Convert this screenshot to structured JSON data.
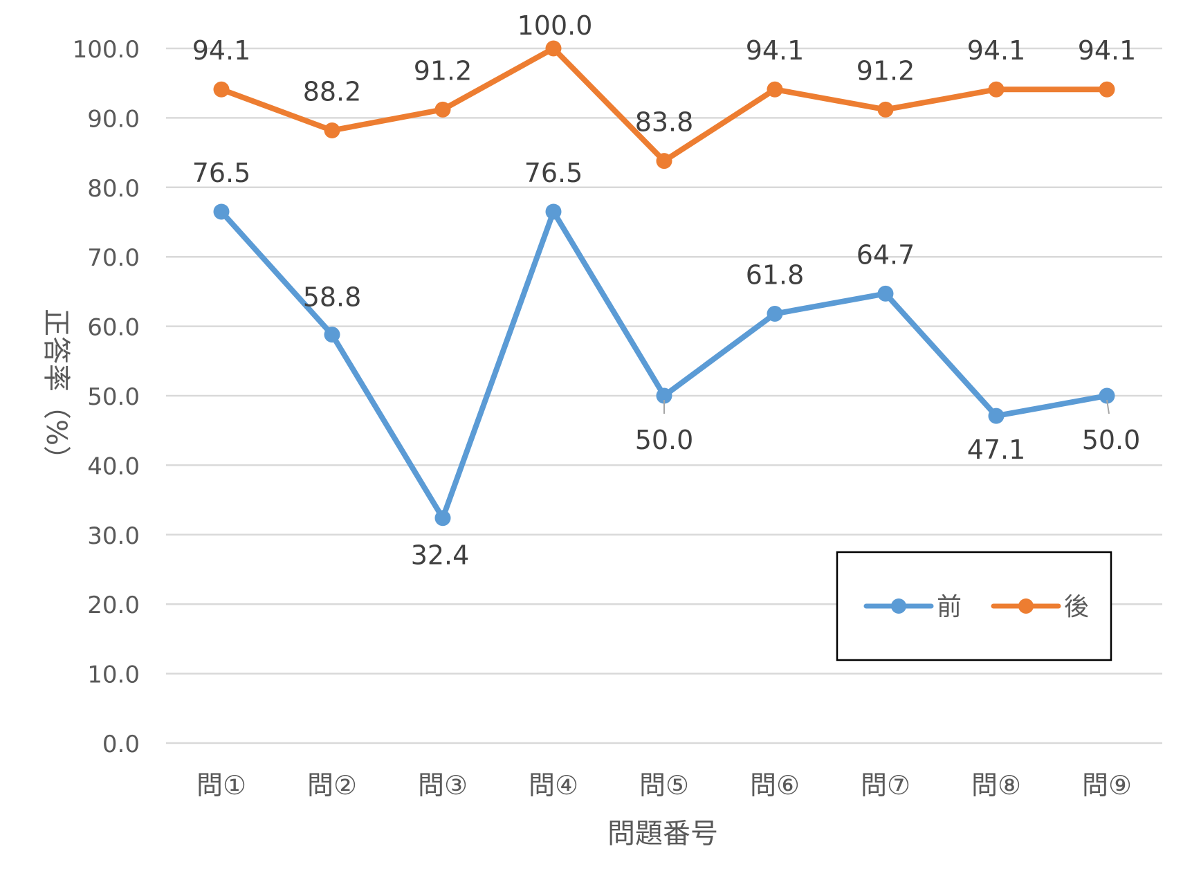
{
  "chart_data": {
    "type": "line",
    "title": "",
    "xlabel": "問題番号",
    "ylabel": "正答率（%）",
    "categories": [
      "問①",
      "問②",
      "問③",
      "問④",
      "問⑤",
      "問⑥",
      "問⑦",
      "問⑧",
      "問⑨"
    ],
    "ylim": [
      0,
      100
    ],
    "yticks": [
      "0.0",
      "10.0",
      "20.0",
      "30.0",
      "40.0",
      "50.0",
      "60.0",
      "70.0",
      "80.0",
      "90.0",
      "100.0"
    ],
    "grid": true,
    "legend_position": "bottom-right",
    "series": [
      {
        "name": "前",
        "color": "#5B9BD5",
        "values": [
          76.5,
          58.8,
          32.4,
          76.5,
          50.0,
          61.8,
          64.7,
          47.1,
          50.0
        ],
        "labels": [
          "76.5",
          "58.8",
          "32.4",
          "76.5",
          "50.0",
          "61.8",
          "64.7",
          "47.1",
          "50.0"
        ]
      },
      {
        "name": "後",
        "color": "#ED7D31",
        "values": [
          94.1,
          88.2,
          91.2,
          100.0,
          83.8,
          94.1,
          91.2,
          94.1,
          94.1
        ],
        "labels": [
          "94.1",
          "88.2",
          "91.2",
          "100.0",
          "83.8",
          "94.1",
          "91.2",
          "94.1",
          "94.1"
        ]
      }
    ]
  }
}
